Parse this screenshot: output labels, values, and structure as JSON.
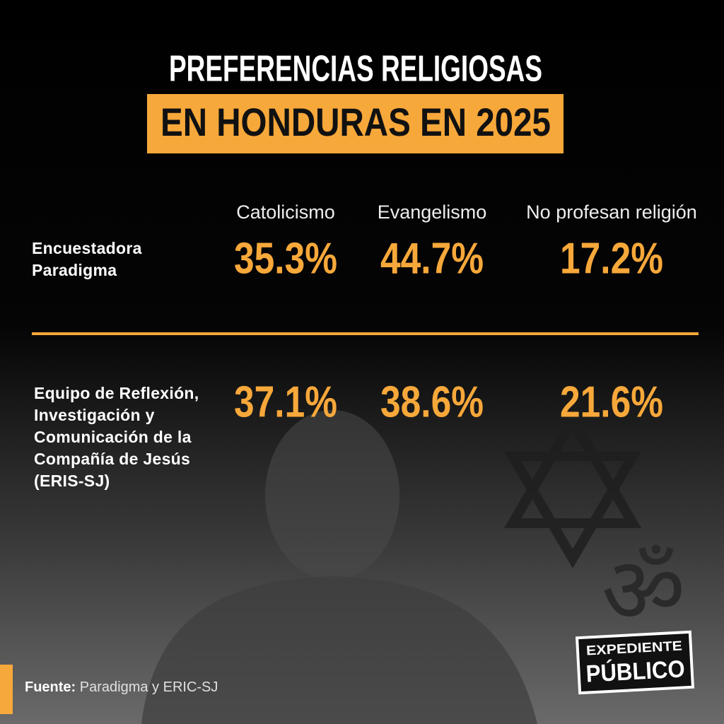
{
  "title": {
    "line1": "PREFERENCIAS RELIGIOSAS",
    "line2": "EN HONDURAS EN 2025"
  },
  "table": {
    "columns": [
      "Catolicismo",
      "Evangelismo",
      "No profesan religión"
    ],
    "rows": [
      {
        "label": "Encuestadora Paradigma",
        "values": [
          "35.3%",
          "44.7%",
          "17.2%"
        ]
      },
      {
        "label": "Equipo de Reflexión, Investigación y Comunicación de la Compañía de Jesús (ERIS-SJ)",
        "values": [
          "37.1%",
          "38.6%",
          "21.6%"
        ]
      }
    ]
  },
  "source": {
    "label": "Fuente:",
    "text": "Paradigma y ERIC-SJ"
  },
  "logo": {
    "line1": "EXPEDIENTE",
    "line2": "PÚBLICO"
  }
}
